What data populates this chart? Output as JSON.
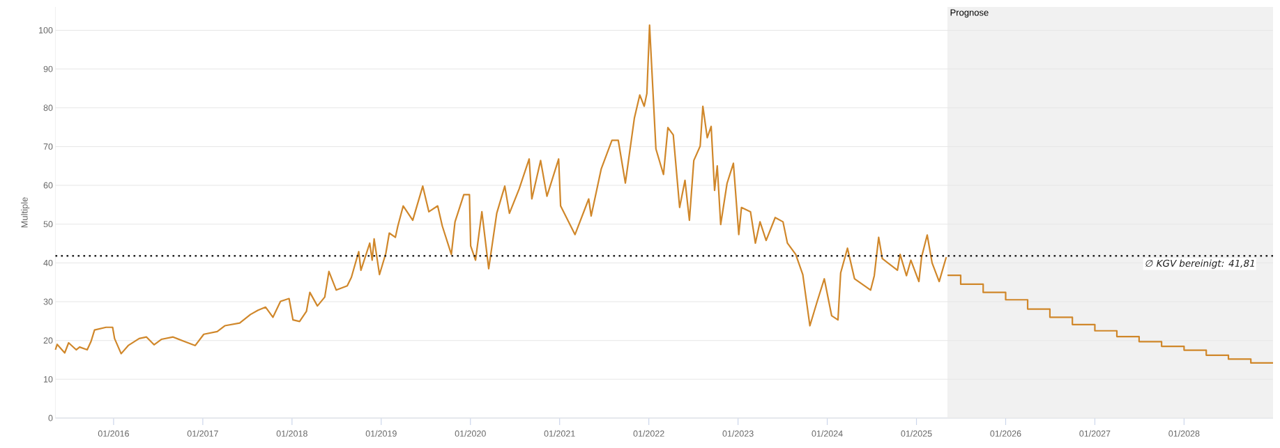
{
  "chart_data": {
    "type": "line",
    "ylabel": "Multiple",
    "xlim": [
      "2015-05-08",
      "2028-12-31"
    ],
    "ylim": [
      0,
      106
    ],
    "xticks": [
      {
        "value": "2016-01-01",
        "label": "01/2016"
      },
      {
        "value": "2017-01-01",
        "label": "01/2017"
      },
      {
        "value": "2018-01-01",
        "label": "01/2018"
      },
      {
        "value": "2019-01-01",
        "label": "01/2019"
      },
      {
        "value": "2020-01-01",
        "label": "01/2020"
      },
      {
        "value": "2021-01-01",
        "label": "01/2021"
      },
      {
        "value": "2022-01-01",
        "label": "01/2022"
      },
      {
        "value": "2023-01-01",
        "label": "01/2023"
      },
      {
        "value": "2024-01-01",
        "label": "01/2024"
      },
      {
        "value": "2025-01-01",
        "label": "01/2025"
      },
      {
        "value": "2026-01-01",
        "label": "01/2026"
      },
      {
        "value": "2027-01-01",
        "label": "01/2027"
      },
      {
        "value": "2028-01-01",
        "label": "01/2028"
      }
    ],
    "yticks": [
      0,
      10,
      20,
      30,
      40,
      50,
      60,
      70,
      80,
      90,
      100
    ],
    "grid": "y",
    "bands": [
      {
        "axis": "x",
        "from": "2025-05-08",
        "to": "2028-12-31",
        "label": "Prognose",
        "color": "#f1f1f1"
      }
    ],
    "ref_lines": [
      {
        "axis": "y",
        "value": 41.81,
        "label": "∅ KGV bereinigt: 41,81",
        "color": "#222222",
        "line_style": "dotted"
      }
    ],
    "series": [
      {
        "color": "#d0872a",
        "x": [
          "2015-05-08",
          "2015-05-15",
          "2015-06-15",
          "2015-07-01",
          "2015-08-01",
          "2015-08-15",
          "2015-09-15",
          "2015-10-01",
          "2015-10-15",
          "2015-12-01",
          "2015-12-28",
          "2016-01-05",
          "2016-02-01",
          "2016-03-01",
          "2016-04-15",
          "2016-05-15",
          "2016-06-15",
          "2016-07-15",
          "2016-09-01",
          "2016-10-15",
          "2016-12-01",
          "2017-01-05",
          "2017-03-01",
          "2017-04-01",
          "2017-06-01",
          "2017-07-15",
          "2017-08-15",
          "2017-09-15",
          "2017-10-15",
          "2017-11-15",
          "2017-12-20",
          "2018-01-05",
          "2018-02-01",
          "2018-03-01",
          "2018-03-15",
          "2018-04-15",
          "2018-05-15",
          "2018-06-01",
          "2018-07-01",
          "2018-08-15",
          "2018-09-01",
          "2018-10-01",
          "2018-10-10",
          "2018-11-15",
          "2018-11-25",
          "2018-12-03",
          "2018-12-25",
          "2019-01-20",
          "2019-02-03",
          "2019-02-28",
          "2019-03-10",
          "2019-04-01",
          "2019-05-10",
          "2019-06-20",
          "2019-07-15",
          "2019-08-20",
          "2019-09-08",
          "2019-10-15",
          "2019-10-30",
          "2019-12-05",
          "2019-12-28",
          "2020-01-02",
          "2020-01-22",
          "2020-02-17",
          "2020-03-16",
          "2020-04-18",
          "2020-05-21",
          "2020-06-09",
          "2020-07-19",
          "2020-08-29",
          "2020-09-09",
          "2020-10-15",
          "2020-11-10",
          "2020-12-28",
          "2021-01-05",
          "2021-03-05",
          "2021-04-30",
          "2021-05-10",
          "2021-06-20",
          "2021-08-03",
          "2021-08-29",
          "2021-09-27",
          "2021-11-03",
          "2021-11-25",
          "2021-12-13",
          "2021-12-24",
          "2022-01-04",
          "2022-01-30",
          "2022-03-02",
          "2022-03-20",
          "2022-04-11",
          "2022-05-07",
          "2022-05-29",
          "2022-06-16",
          "2022-07-04",
          "2022-07-30",
          "2022-08-10",
          "2022-08-28",
          "2022-09-13",
          "2022-09-27",
          "2022-10-08",
          "2022-10-22",
          "2022-11-17",
          "2022-12-13",
          "2023-01-04",
          "2023-01-15",
          "2023-02-21",
          "2023-03-13",
          "2023-04-01",
          "2023-04-26",
          "2023-06-02",
          "2023-07-04",
          "2023-07-22",
          "2023-08-25",
          "2023-09-23",
          "2023-10-22",
          "2023-11-21",
          "2023-12-20",
          "2024-01-19",
          "2024-02-14",
          "2024-02-25",
          "2024-03-24",
          "2024-04-22",
          "2024-06-27",
          "2024-07-12",
          "2024-07-30",
          "2024-08-14",
          "2024-10-15",
          "2024-10-26",
          "2024-11-21",
          "2024-12-09",
          "2025-01-11",
          "2025-01-22",
          "2025-02-14",
          "2025-03-06",
          "2025-04-04",
          "2025-05-03"
        ],
        "values": [
          17.6,
          19.0,
          16.8,
          19.4,
          17.6,
          18.3,
          17.6,
          19.8,
          22.7,
          23.4,
          23.4,
          20.5,
          16.6,
          18.7,
          20.5,
          20.9,
          18.9,
          20.3,
          20.9,
          19.8,
          18.7,
          21.6,
          22.3,
          23.8,
          24.5,
          26.7,
          27.8,
          28.6,
          26.0,
          30.1,
          30.8,
          25.3,
          24.9,
          27.5,
          32.4,
          28.9,
          31.2,
          37.8,
          33.0,
          34.1,
          36.3,
          42.9,
          38.1,
          45.1,
          40.7,
          46.2,
          37.0,
          42.5,
          47.7,
          46.6,
          49.5,
          54.7,
          51.0,
          59.8,
          53.2,
          54.7,
          49.5,
          42.2,
          50.6,
          57.6,
          57.6,
          44.4,
          40.7,
          53.2,
          38.5,
          52.8,
          59.8,
          52.8,
          59.1,
          66.8,
          56.5,
          66.4,
          57.2,
          66.8,
          54.7,
          47.3,
          56.5,
          52.1,
          64.2,
          71.6,
          71.6,
          60.6,
          77.4,
          83.3,
          80.4,
          83.7,
          101.3,
          69.4,
          62.8,
          74.9,
          73.0,
          54.3,
          61.3,
          51.0,
          66.4,
          70.1,
          80.4,
          72.3,
          75.2,
          58.7,
          65.0,
          49.9,
          60.5,
          65.7,
          47.3,
          54.3,
          53.2,
          45.1,
          50.6,
          45.8,
          51.7,
          50.6,
          45.1,
          42.2,
          37.0,
          23.8,
          30.1,
          35.9,
          26.4,
          25.3,
          37.4,
          43.8,
          35.9,
          33.0,
          36.7,
          46.6,
          41.1,
          38.1,
          42.2,
          36.7,
          40.7,
          35.2,
          41.5,
          47.2,
          40.0,
          35.2,
          41.5
        ]
      },
      {
        "type": "step",
        "color": "#d0872a",
        "x": [
          "2025-05-08",
          "2025-07-01",
          "2025-10-01",
          "2026-01-01",
          "2026-04-01",
          "2026-07-01",
          "2026-10-01",
          "2027-01-01",
          "2027-04-01",
          "2027-07-01",
          "2027-10-01",
          "2028-01-01",
          "2028-04-01",
          "2028-07-01",
          "2028-10-01",
          "2028-12-31"
        ],
        "values": [
          36.8,
          34.5,
          32.4,
          30.5,
          28.1,
          26.0,
          24.1,
          22.5,
          21.0,
          19.7,
          18.5,
          17.5,
          16.2,
          15.2,
          14.2,
          14.2
        ]
      }
    ]
  }
}
